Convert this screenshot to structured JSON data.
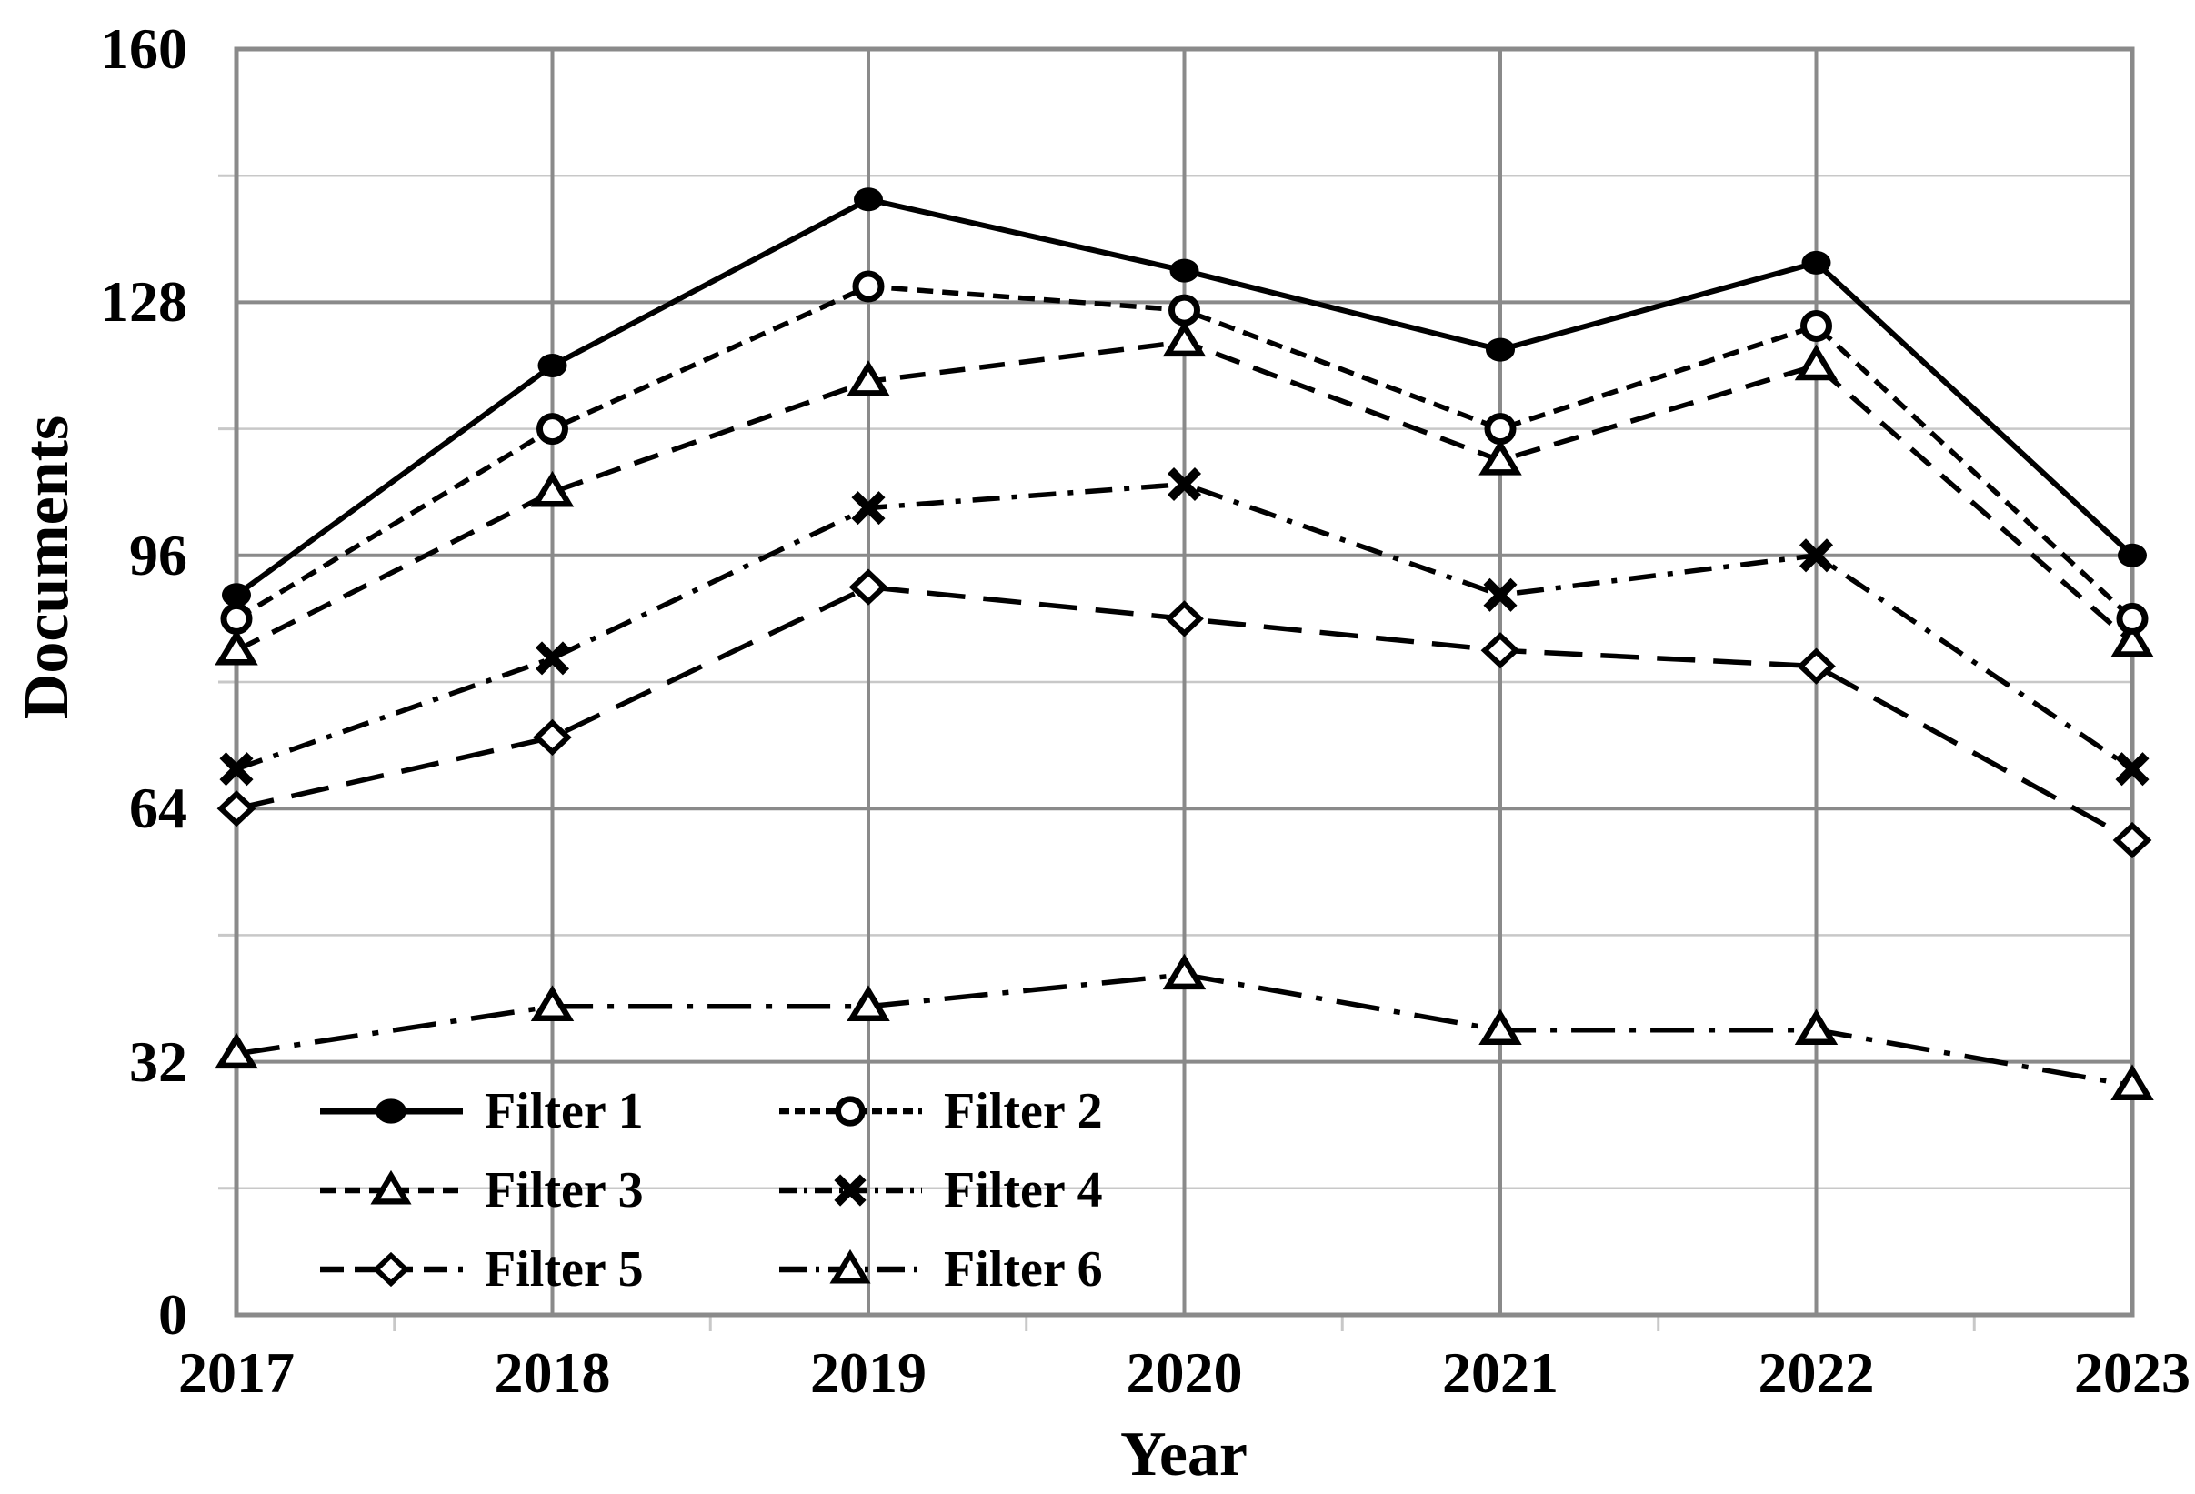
{
  "axes": {
    "y_title": "Documents",
    "x_title": "Year",
    "y_tick_labels": [
      "0",
      "32",
      "64",
      "96",
      "128",
      "160"
    ],
    "y_minor_ticks": [
      16,
      48,
      80,
      112,
      144
    ],
    "x_tick_labels": [
      "2017",
      "2018",
      "2019",
      "2020",
      "2021",
      "2022",
      "2023"
    ],
    "grid": "on"
  },
  "colors": {
    "series": "#000000",
    "major_grid": "#8a8a8a",
    "minor_grid": "#c8c8c8",
    "background": "#ffffff",
    "text": "#000000"
  },
  "chart_data": {
    "type": "line",
    "title": "",
    "xlabel": "Year",
    "ylabel": "Documents",
    "x": [
      2017,
      2018,
      2019,
      2020,
      2021,
      2022,
      2023
    ],
    "ylim": [
      0,
      160
    ],
    "y_major_step": 32,
    "y_minor_step": 16,
    "legend_position": "lower-left-inside",
    "series": [
      {
        "name": "Filter 1",
        "marker": "filled-circle",
        "line_style": "solid",
        "values": [
          91,
          120,
          141,
          132,
          122,
          133,
          96
        ]
      },
      {
        "name": "Filter 2",
        "marker": "open-circle",
        "line_style": "dash",
        "values": [
          88,
          112,
          130,
          127,
          112,
          125,
          88
        ]
      },
      {
        "name": "Filter 3",
        "marker": "open-triangle",
        "line_style": "medium-dash",
        "values": [
          84,
          104,
          118,
          123,
          108,
          120,
          85
        ]
      },
      {
        "name": "Filter 4",
        "marker": "x-cross",
        "line_style": "dash-dot",
        "values": [
          69,
          83,
          102,
          105,
          91,
          96,
          69
        ]
      },
      {
        "name": "Filter 5",
        "marker": "open-diamond",
        "line_style": "long-dash",
        "values": [
          64,
          73,
          92,
          88,
          84,
          82,
          60
        ]
      },
      {
        "name": "Filter 6",
        "marker": "open-triangle",
        "line_style": "long-dash-dot",
        "values": [
          33,
          39,
          39,
          43,
          36,
          36,
          29
        ]
      }
    ]
  }
}
